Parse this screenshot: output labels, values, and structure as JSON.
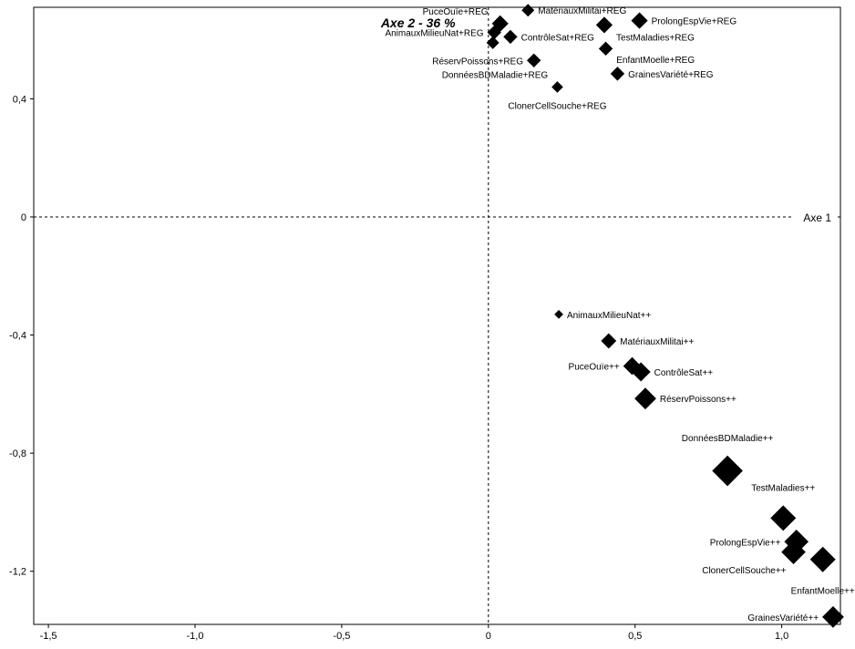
{
  "chart_data": {
    "type": "scatter",
    "xlabel": "Axe 1",
    "ylabel": "Axe 2 - 36 %",
    "xlim": [
      -1.55,
      1.2
    ],
    "ylim": [
      -1.38,
      0.71
    ],
    "grid": false,
    "x_ticks": [
      -1.5,
      -1.0,
      -0.5,
      0,
      0.5,
      1.0
    ],
    "x_tick_labels": [
      "-1,5",
      "-1,0",
      "-0,5",
      "0",
      "0,5",
      "1,0"
    ],
    "y_ticks": [
      0.4,
      0,
      -0.4,
      -0.8,
      -1.2
    ],
    "y_tick_labels": [
      "0,4",
      "0",
      "-0,4",
      "-0,8",
      "-1,2"
    ],
    "marker": "diamond",
    "marker_color": "#000000",
    "points": [
      {
        "label": "PuceOuïe+REG",
        "x": 0.04,
        "y": 0.655,
        "size": 1.3,
        "label_pos": "top-left"
      },
      {
        "label": "MatériauxMilitai+REG",
        "x": 0.135,
        "y": 0.7,
        "size": 1.0,
        "label_pos": "right"
      },
      {
        "label": "ProlongEspVie+REG",
        "x": 0.515,
        "y": 0.665,
        "size": 1.3,
        "label_pos": "right"
      },
      {
        "label": "AnimauxMilieuNat+REG",
        "x": 0.02,
        "y": 0.625,
        "size": 1.1,
        "label_pos": "left"
      },
      {
        "label": "ContrôleSat+REG",
        "x": 0.075,
        "y": 0.61,
        "size": 1.1,
        "label_pos": "right"
      },
      {
        "label": "TestMaladies+REG",
        "x": 0.395,
        "y": 0.65,
        "size": 1.3,
        "label_pos": "below-right"
      },
      {
        "label": "",
        "x": 0.015,
        "y": 0.59,
        "size": 1.0,
        "label_pos": "none"
      },
      {
        "label": "EnfantMoelle+REG",
        "x": 0.4,
        "y": 0.57,
        "size": 1.1,
        "label_pos": "below-right"
      },
      {
        "label": "RéservPoissons+REG",
        "x": 0.155,
        "y": 0.53,
        "size": 1.1,
        "label_pos": "left"
      },
      {
        "label": "GrainesVariété+REG",
        "x": 0.44,
        "y": 0.485,
        "size": 1.1,
        "label_pos": "right"
      },
      {
        "label": "DonnéesBDMaladie+REG",
        "x": 0.235,
        "y": 0.44,
        "size": 0.9,
        "label_pos": "top-left"
      },
      {
        "label": "ClonerCellSouche+REG",
        "x": 0.235,
        "y": 0.44,
        "size": 0,
        "label_pos": "below"
      },
      {
        "label": "AnimauxMilieuNat++",
        "x": 0.24,
        "y": -0.33,
        "size": 0.7,
        "label_pos": "right"
      },
      {
        "label": "MatériauxMilitai++",
        "x": 0.41,
        "y": -0.42,
        "size": 1.2,
        "label_pos": "right"
      },
      {
        "label": "PuceOuïe++",
        "x": 0.49,
        "y": -0.505,
        "size": 1.4,
        "label_pos": "left"
      },
      {
        "label": "ContrôleSat++",
        "x": 0.52,
        "y": -0.525,
        "size": 1.5,
        "label_pos": "right"
      },
      {
        "label": "RéservPoissons++",
        "x": 0.535,
        "y": -0.615,
        "size": 1.7,
        "label_pos": "right"
      },
      {
        "label": "DonnéesBDMaladie++",
        "x": 0.815,
        "y": -0.86,
        "size": 2.4,
        "label_pos": "top"
      },
      {
        "label": "TestMaladies++",
        "x": 1.005,
        "y": -1.02,
        "size": 2.0,
        "label_pos": "top"
      },
      {
        "label": "ProlongEspVie++",
        "x": 1.05,
        "y": -1.1,
        "size": 1.9,
        "label_pos": "left"
      },
      {
        "label": "ClonerCellSouche++",
        "x": 1.04,
        "y": -1.135,
        "size": 1.9,
        "label_pos": "below-left"
      },
      {
        "label": "EnfantMoelle++",
        "x": 1.14,
        "y": -1.16,
        "size": 2.0,
        "label_pos": "below"
      },
      {
        "label": "GrainesVariété++",
        "x": 1.175,
        "y": -1.355,
        "size": 1.7,
        "label_pos": "left"
      }
    ]
  }
}
